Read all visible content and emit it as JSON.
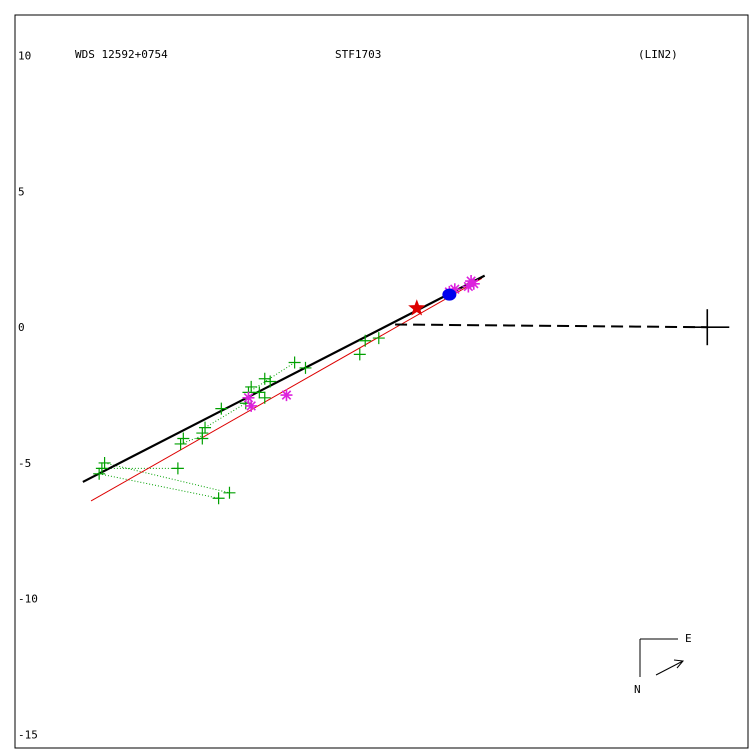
{
  "header": {
    "left": "WDS 12592+0754",
    "center": "STF1703",
    "right": "(LIN2)"
  },
  "compass": {
    "east": "E",
    "north": "N"
  },
  "colors": {
    "axes": "#000000",
    "orbit": "#000000",
    "fit": "#dd0000",
    "micrometer": "#00a000",
    "speckle": "#dd22dd",
    "recent": "#0000ee",
    "marker": "#dd0000"
  },
  "chart_data": {
    "type": "scatter",
    "xlim": [
      -12.5,
      14.5
    ],
    "ylim": [
      -15.5,
      11.5
    ],
    "yticks": [
      {
        "value": 10,
        "label": "10"
      },
      {
        "value": 5,
        "label": "5"
      },
      {
        "value": 0,
        "label": "0"
      },
      {
        "value": -5,
        "label": "-5"
      },
      {
        "value": -10,
        "label": "-10"
      },
      {
        "value": -15,
        "label": "-15"
      }
    ],
    "orbit_line": [
      [
        -10.0,
        -5.7
      ],
      [
        4.8,
        1.9
      ]
    ],
    "fit_line": [
      [
        -9.7,
        -6.4
      ],
      [
        4.7,
        1.8
      ]
    ],
    "primary": [
      13.0,
      0.0
    ],
    "dashed_line": [
      [
        1.5,
        0.1
      ],
      [
        13.0,
        0.0
      ]
    ],
    "marker_star": [
      2.3,
      0.7
    ],
    "micrometer": [
      [
        -9.3,
        -5.2
      ],
      [
        -9.4,
        -5.4
      ],
      [
        -9.2,
        -5.0
      ],
      [
        -6.5,
        -5.2
      ],
      [
        -6.4,
        -4.3
      ],
      [
        -6.3,
        -4.1
      ],
      [
        -5.6,
        -3.9
      ],
      [
        -5.5,
        -3.7
      ],
      [
        -5.6,
        -4.1
      ],
      [
        -4.9,
        -3.0
      ],
      [
        -4.0,
        -2.8
      ],
      [
        -3.9,
        -2.4
      ],
      [
        -3.8,
        -2.2
      ],
      [
        -3.5,
        -2.4
      ],
      [
        -3.3,
        -2.6
      ],
      [
        -3.3,
        -1.9
      ],
      [
        -3.1,
        -2.0
      ],
      [
        -2.2,
        -1.3
      ],
      [
        -1.8,
        -1.5
      ],
      [
        0.2,
        -1.0
      ],
      [
        0.4,
        -0.5
      ],
      [
        0.9,
        -0.4
      ],
      [
        -5.0,
        -6.3
      ],
      [
        -4.6,
        -6.1
      ]
    ],
    "micrometer_links": [
      [
        [
          -9.3,
          -5.2
        ],
        [
          -6.5,
          -5.2
        ]
      ],
      [
        [
          -9.4,
          -5.4
        ],
        [
          -5.0,
          -6.3
        ]
      ],
      [
        [
          -9.2,
          -5.0
        ],
        [
          -4.6,
          -6.1
        ]
      ],
      [
        [
          -6.4,
          -4.3
        ],
        [
          -5.6,
          -4.0
        ]
      ],
      [
        [
          -5.5,
          -3.7
        ],
        [
          -4.0,
          -2.8
        ]
      ],
      [
        [
          -3.9,
          -2.4
        ],
        [
          -2.2,
          -1.3
        ]
      ]
    ],
    "speckle": [
      [
        -2.5,
        -2.5
      ],
      [
        -3.8,
        -2.9
      ],
      [
        -3.9,
        -2.6
      ],
      [
        3.5,
        1.3
      ],
      [
        3.7,
        1.4
      ],
      [
        4.2,
        1.5
      ],
      [
        4.3,
        1.7
      ],
      [
        4.4,
        1.6
      ]
    ],
    "recent": [
      [
        3.5,
        1.2
      ]
    ]
  }
}
